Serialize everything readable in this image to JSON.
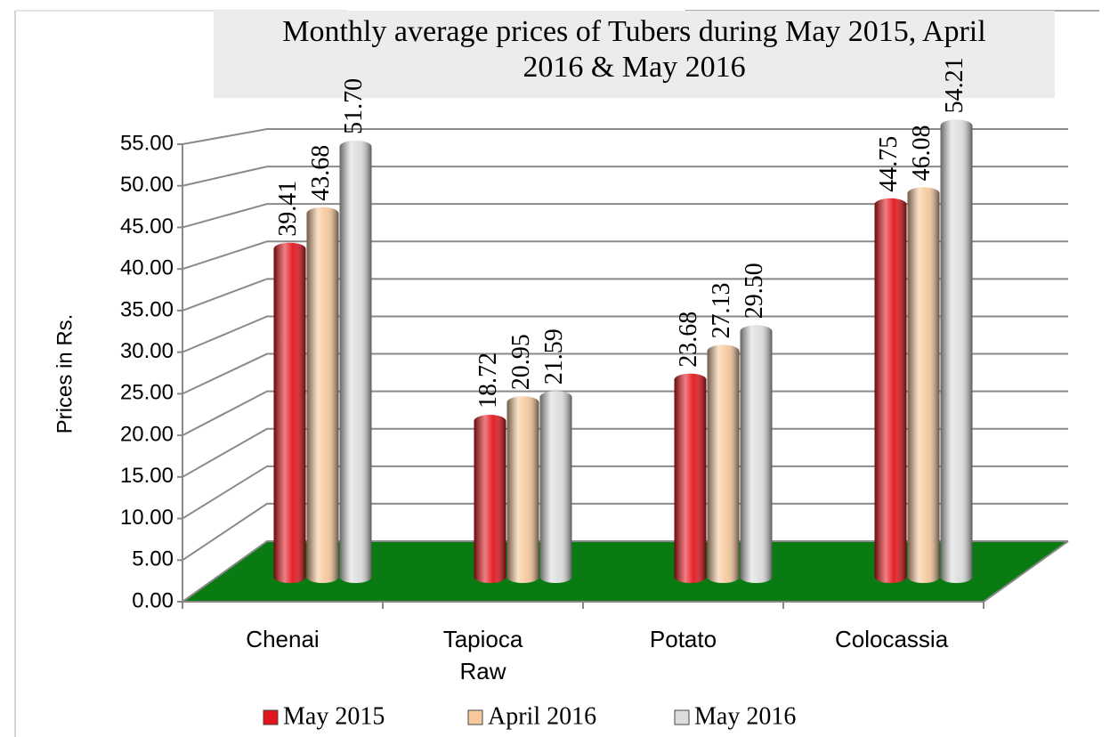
{
  "chart_data": {
    "type": "bar",
    "title": "Monthly average prices of Tubers during May 2015, April 2016 & May 2016",
    "y_label": "Prices in Rs.",
    "categories": [
      "Chenai",
      "Tapioca Raw",
      "Potato",
      "Colocassia"
    ],
    "series": [
      {
        "name": "May 2015",
        "color": "#e3141b",
        "values": [
          39.41,
          18.72,
          23.68,
          44.75
        ],
        "value_labels": [
          "39.41",
          "18.72",
          "23.68",
          "44.75"
        ]
      },
      {
        "name": "April 2016",
        "color": "#f6c89c",
        "values": [
          43.68,
          20.95,
          27.13,
          46.08
        ],
        "value_labels": [
          "43.68",
          "20.95",
          "27.13",
          "46.08"
        ]
      },
      {
        "name": "May 2016",
        "color": "#dcdcdc",
        "values": [
          51.7,
          21.59,
          29.5,
          54.21
        ],
        "value_labels": [
          "51.70",
          "21.59",
          "29.50",
          "54.21"
        ]
      }
    ],
    "ylim": [
      0,
      55
    ],
    "yticks": [
      {
        "value": 0,
        "label": "0.00"
      },
      {
        "value": 5,
        "label": "5.00"
      },
      {
        "value": 10,
        "label": "10.00"
      },
      {
        "value": 15,
        "label": "15.00"
      },
      {
        "value": 20,
        "label": "20.00"
      },
      {
        "value": 25,
        "label": "25.00"
      },
      {
        "value": 30,
        "label": "30.00"
      },
      {
        "value": 35,
        "label": "35.00"
      },
      {
        "value": 40,
        "label": "40.00"
      },
      {
        "value": 45,
        "label": "45.00"
      },
      {
        "value": 50,
        "label": "50.00"
      },
      {
        "value": 55,
        "label": "55.00"
      }
    ],
    "grid": true,
    "floor_color": "#0a7a12",
    "legend": "bottom"
  }
}
